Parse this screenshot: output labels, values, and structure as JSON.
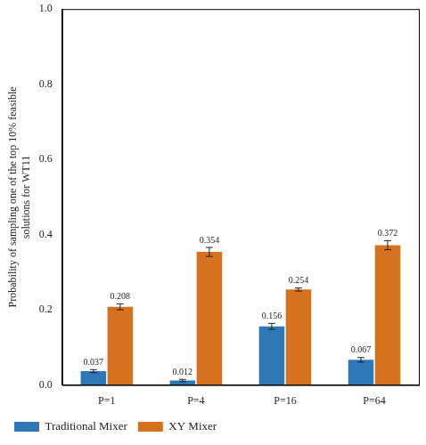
{
  "chart_data": {
    "type": "bar",
    "y_label": [
      "Probability of sampling one of the top 10% feasible",
      "solutions for WT11"
    ],
    "categories": [
      "P=1",
      "P=4",
      "P=16",
      "P=64"
    ],
    "series": [
      {
        "name": "Traditional Mixer",
        "color": "#2f78b8",
        "values": [
          0.037,
          0.012,
          0.156,
          0.067
        ],
        "errors": [
          0.004,
          0.003,
          0.008,
          0.006
        ]
      },
      {
        "name": "XY Mixer",
        "color": "#d5711f",
        "values": [
          0.208,
          0.354,
          0.254,
          0.372
        ],
        "errors": [
          0.008,
          0.012,
          0.004,
          0.012
        ]
      }
    ],
    "ylim": [
      0,
      1
    ],
    "yticks": [
      {
        "value": 0,
        "label": "0.0"
      },
      0.2,
      0.4,
      0.6,
      0.8,
      {
        "value": 1,
        "label": "1.0"
      }
    ],
    "grid": false,
    "legend": "bottom left",
    "data_labels": true
  }
}
